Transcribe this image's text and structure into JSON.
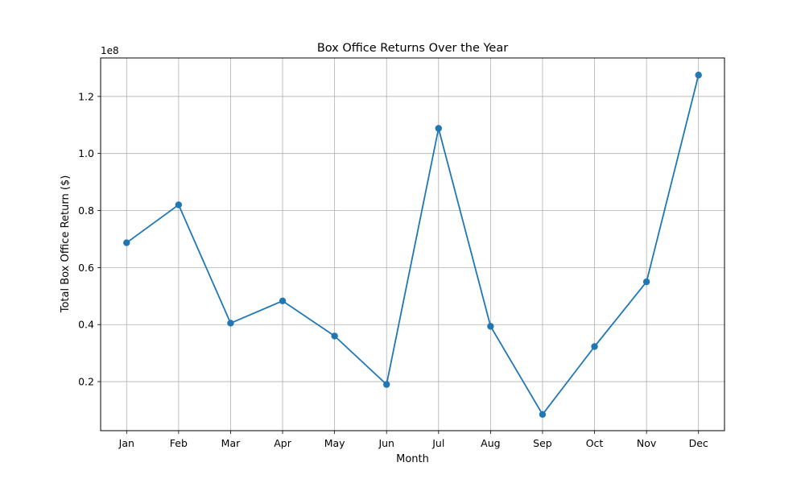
{
  "chart_data": {
    "type": "line",
    "title": "Box Office Returns Over the Year",
    "xlabel": "Month",
    "ylabel": "Total Box Office Return ($)",
    "y_offset_label": "1e8",
    "y_scale_multiplier": 100000000,
    "categories": [
      "Jan",
      "Feb",
      "Mar",
      "Apr",
      "May",
      "Jun",
      "Jul",
      "Aug",
      "Sep",
      "Oct",
      "Nov",
      "Dec"
    ],
    "series": [
      {
        "values": [
          68700000,
          82000000,
          40500000,
          48300000,
          36000000,
          19000000,
          108800000,
          39400000,
          8500000,
          32300000,
          55000000,
          127500000
        ]
      }
    ],
    "yticks": [
      0.2,
      0.4,
      0.6,
      0.8,
      1.0,
      1.2
    ],
    "ytick_labels": [
      "0.2",
      "0.4",
      "0.6",
      "0.8",
      "1.0",
      "1.2"
    ],
    "ylim": [
      2800000,
      133500000
    ],
    "grid": true,
    "colors": {
      "line": "#1f77b4",
      "grid": "#b0b0b0",
      "axes": "#000000"
    }
  }
}
